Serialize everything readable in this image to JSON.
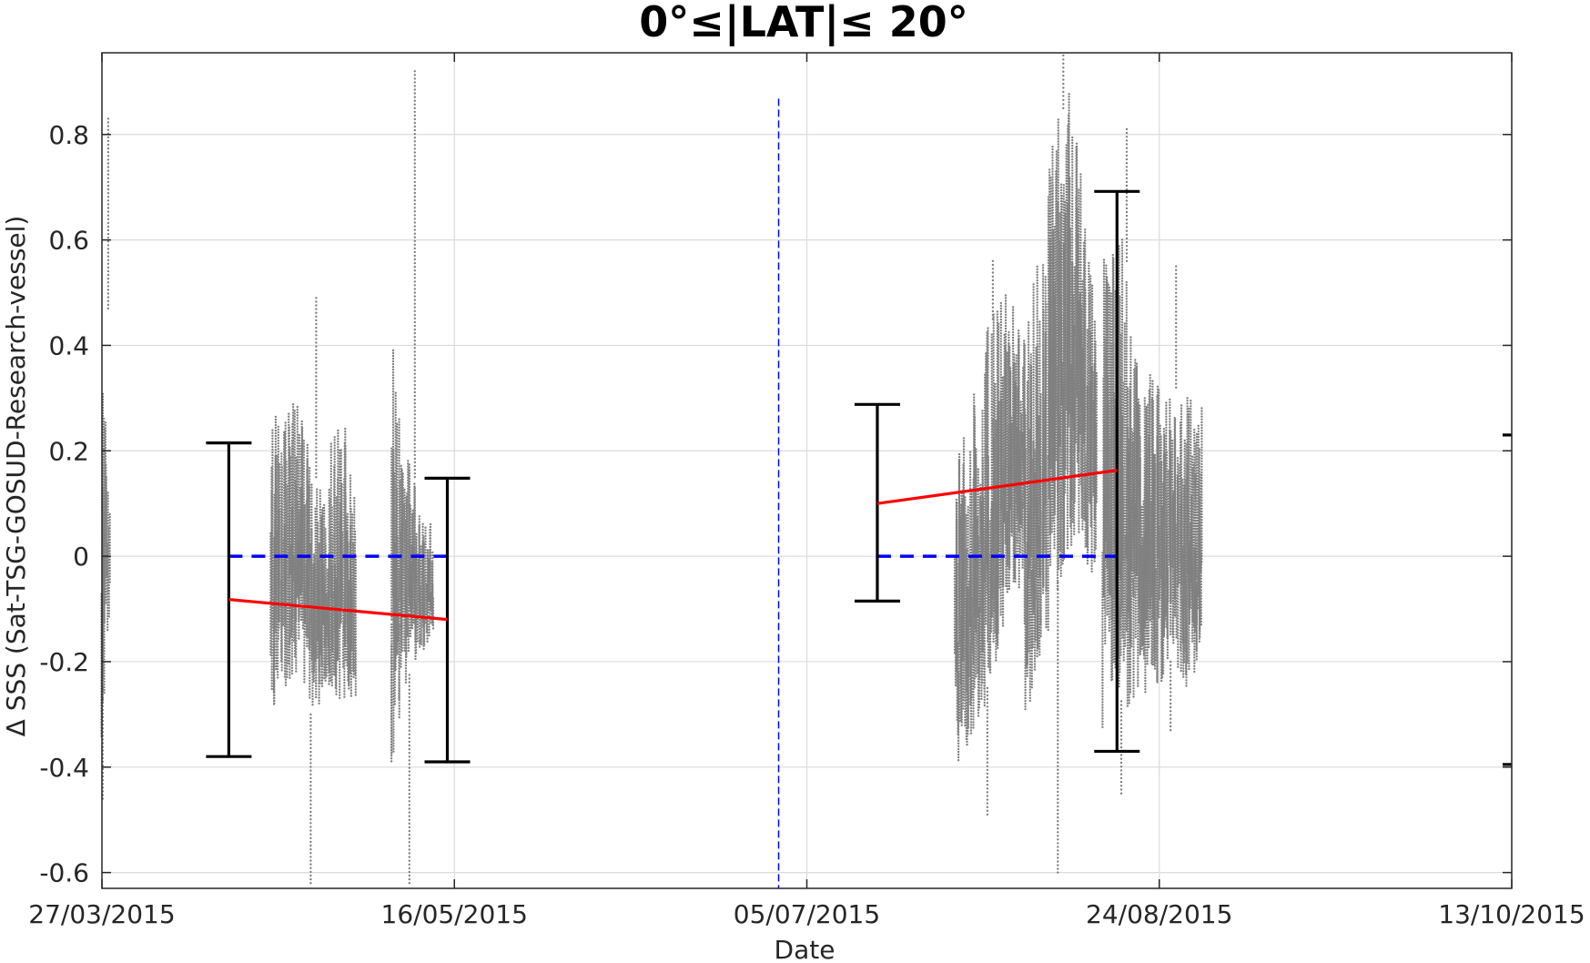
{
  "chart_data": {
    "type": "scatter",
    "title": "0°≤|LAT|≤ 20°",
    "xlabel": "Date",
    "ylabel": "Δ SSS (Sat-TSG-GOSUD-Research-vessel)",
    "xlim": [
      "2015-03-27",
      "2015-10-13"
    ],
    "ylim": [
      -0.63,
      0.955
    ],
    "grid": true,
    "x_ticks": [
      "2015-03-27",
      "2015-05-16",
      "2015-07-05",
      "2015-08-24",
      "2015-10-13"
    ],
    "x_tick_labels": [
      "27/03/2015",
      "16/05/2015",
      "05/07/2015",
      "24/08/2015",
      "13/10/2015"
    ],
    "y_ticks": [
      -0.6,
      -0.4,
      -0.2,
      0,
      0.2,
      0.4,
      0.6,
      0.8
    ],
    "y_tick_labels": [
      "-0.6",
      "-0.4",
      "-0.2",
      "0",
      "0.2",
      "0.4",
      "0.6",
      "0.8"
    ],
    "colors": {
      "points": "#808080",
      "trend": "#ff0000",
      "zero_line": "#0000ff",
      "error_bar": "#000000",
      "divider": "#0000ff",
      "grid": "#dcdcdc"
    },
    "point_clusters": [
      {
        "x_start": "2015-03-27",
        "x_end": "2015-03-28",
        "y_low": [
          -0.36,
          -0.3,
          -0.2,
          -0.2,
          -0.1
        ],
        "y_high": [
          0.3,
          0.44,
          0.47,
          0.25,
          0.1
        ],
        "y_out_min": -0.46,
        "y_out_max": 0.83
      },
      {
        "x_start": "2015-04-20",
        "x_end": "2015-05-02",
        "y_low": [
          -0.3,
          -0.25,
          -0.22,
          -0.3,
          -0.25,
          -0.28,
          -0.28
        ],
        "y_high": [
          0.25,
          0.3,
          0.28,
          0.15,
          0.2,
          0.25,
          0.22
        ],
        "y_out_min": -0.62,
        "y_out_max": 0.49
      },
      {
        "x_start": "2015-05-07",
        "x_end": "2015-05-13",
        "y_low": [
          -0.4,
          -0.25,
          -0.2,
          -0.15
        ],
        "y_high": [
          0.42,
          0.2,
          0.1,
          0.05
        ],
        "y_out_min": -0.62,
        "y_out_max": 0.92
      },
      {
        "x_start": "2015-07-26",
        "x_end": "2015-08-05",
        "y_low": [
          -0.4,
          -0.35,
          -0.25,
          -0.1,
          -0.05
        ],
        "y_high": [
          0.15,
          0.3,
          0.45,
          0.5,
          0.4
        ],
        "y_out_min": -0.49,
        "y_out_max": 0.56
      },
      {
        "x_start": "2015-08-05",
        "x_end": "2015-08-15",
        "y_low": [
          -0.35,
          -0.2,
          -0.1,
          0.0,
          0.05,
          -0.1
        ],
        "y_high": [
          0.4,
          0.6,
          0.8,
          0.9,
          0.7,
          0.45
        ],
        "y_out_min": -0.6,
        "y_out_max": 0.95
      },
      {
        "x_start": "2015-08-16",
        "x_end": "2015-08-22",
        "y_low": [
          -0.35,
          -0.25,
          -0.3,
          -0.2
        ],
        "y_high": [
          0.55,
          0.72,
          0.4,
          0.3
        ],
        "y_out_min": -0.45,
        "y_out_max": 0.81
      },
      {
        "x_start": "2015-08-22",
        "x_end": "2015-08-30",
        "y_low": [
          -0.3,
          -0.25,
          -0.2,
          -0.25,
          -0.2
        ],
        "y_high": [
          0.35,
          0.38,
          0.32,
          0.3,
          0.28
        ],
        "y_out_min": -0.33,
        "y_out_max": 0.55
      }
    ],
    "error_bars": [
      {
        "x": "2015-04-14",
        "low": -0.38,
        "high": 0.215
      },
      {
        "x": "2015-05-15",
        "low": -0.39,
        "high": 0.148
      },
      {
        "x": "2015-07-15",
        "low": -0.085,
        "high": 0.288
      },
      {
        "x": "2015-08-18",
        "low": -0.37,
        "high": 0.692
      }
    ],
    "trend_lines": [
      {
        "x": [
          "2015-04-14",
          "2015-05-15"
        ],
        "y": [
          -0.082,
          -0.12
        ]
      },
      {
        "x": [
          "2015-07-15",
          "2015-08-18"
        ],
        "y": [
          0.1,
          0.163
        ]
      }
    ],
    "zero_lines": [
      {
        "x": [
          "2015-04-14",
          "2015-05-15"
        ],
        "y": [
          0,
          0
        ]
      },
      {
        "x": [
          "2015-07-15",
          "2015-08-18"
        ],
        "y": [
          0,
          0
        ]
      }
    ],
    "divider": {
      "x": "2015-07-01",
      "y_top": 0.868
    },
    "right_edge_marks": [
      0.23,
      -0.395
    ]
  }
}
